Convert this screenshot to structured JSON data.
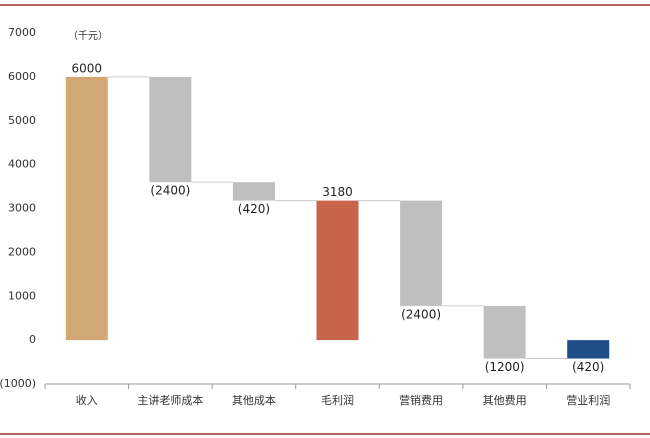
{
  "chart_data": {
    "type": "waterfall",
    "unit_label": "（千元）",
    "categories": [
      "收入",
      "主讲老师成本",
      "其他成本",
      "毛利润",
      "营销费用",
      "其他费用",
      "营业利润"
    ],
    "values": [
      6000,
      -2400,
      -420,
      3180,
      -2400,
      -1200,
      -420
    ],
    "value_labels": [
      "6000",
      "(2400)",
      "(420)",
      "3180",
      "(2400)",
      "(1200)",
      "(420)"
    ],
    "is_total": [
      true,
      false,
      false,
      true,
      false,
      false,
      true
    ],
    "colors": [
      "#d2a874",
      "#bfbfbf",
      "#bfbfbf",
      "#c8644a",
      "#bfbfbf",
      "#bfbfbf",
      "#1f4e89"
    ],
    "ylim": [
      -1000,
      7000
    ],
    "yticks": [
      {
        "value": -1000,
        "label": "(1000)"
      },
      0,
      1000,
      2000,
      3000,
      4000,
      5000,
      6000,
      7000
    ]
  }
}
